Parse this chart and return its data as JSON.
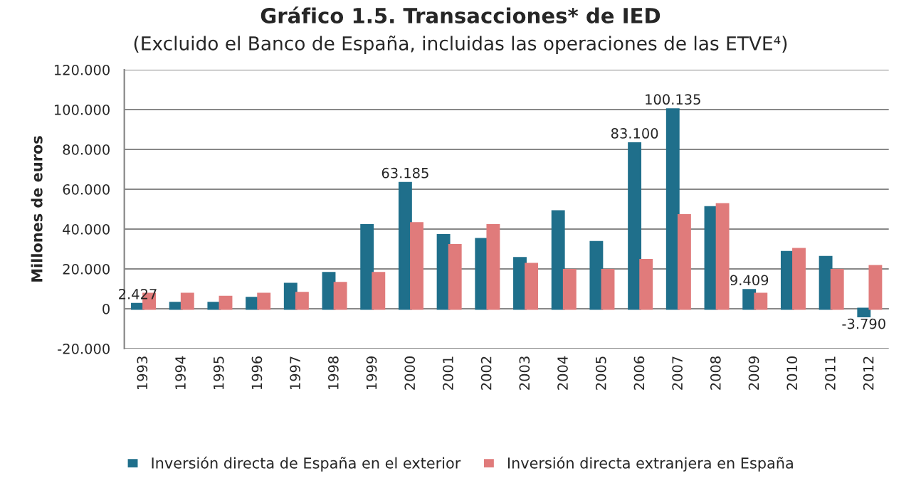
{
  "chart_data": {
    "type": "bar",
    "title": "Gráfico 1.5. Transacciones* de IED",
    "subtitle": "(Excluido el Banco de España, incluidas las operaciones de las ETVE⁴)",
    "ylabel": "Millones de euros",
    "categories": [
      "1993",
      "1994",
      "1995",
      "1996",
      "1997",
      "1998",
      "1999",
      "2000",
      "2001",
      "2002",
      "2003",
      "2004",
      "2005",
      "2006",
      "2007",
      "2008",
      "2009",
      "2010",
      "2011",
      "2012"
    ],
    "series": [
      {
        "name": "Inversión directa de España en el exterior",
        "color": "#1f6f8b",
        "values": [
          2427,
          3000,
          3000,
          5500,
          12500,
          18000,
          42000,
          63185,
          37000,
          35000,
          25500,
          49000,
          33500,
          83100,
          100135,
          51000,
          9409,
          28500,
          26000,
          -3790
        ],
        "value_labels": [
          "2.427",
          null,
          null,
          null,
          null,
          null,
          null,
          "63.185",
          null,
          null,
          null,
          null,
          null,
          "83.100",
          "100.135",
          null,
          "9.409",
          null,
          null,
          "-3.790"
        ]
      },
      {
        "name": "Inversión directa extranjera en España",
        "color": "#e07b7b",
        "values": [
          7500,
          7500,
          6000,
          7500,
          8000,
          13000,
          18000,
          43000,
          32000,
          42000,
          22500,
          19500,
          19500,
          24500,
          47000,
          52500,
          7500,
          30000,
          19500,
          21500
        ]
      }
    ],
    "ylim": [
      -20000,
      120000
    ],
    "yticks": [
      {
        "value": -20000,
        "label": "-20.000"
      },
      {
        "value": 0,
        "label": "0"
      },
      {
        "value": 20000,
        "label": "20.000"
      },
      {
        "value": 40000,
        "label": "40.000"
      },
      {
        "value": 60000,
        "label": "60.000"
      },
      {
        "value": 80000,
        "label": "80.000"
      },
      {
        "value": 100000,
        "label": "100.000"
      },
      {
        "value": 120000,
        "label": "120.000"
      }
    ],
    "grid": "y",
    "legend": "bottom"
  }
}
